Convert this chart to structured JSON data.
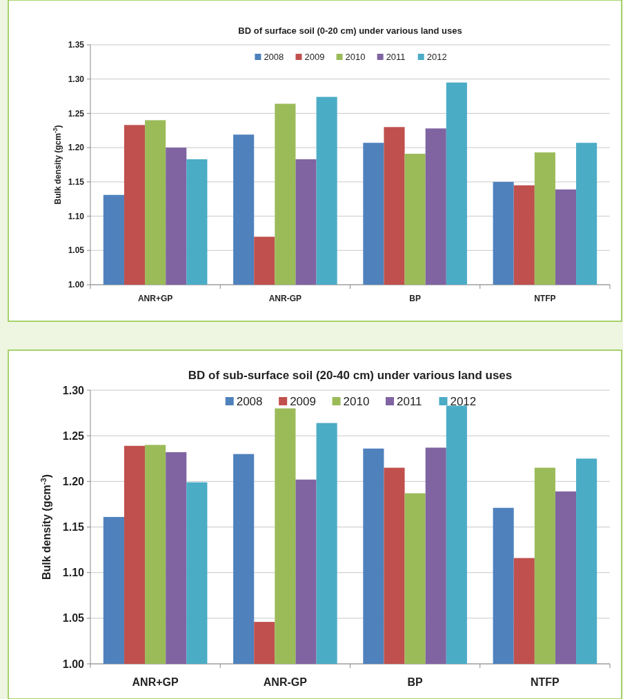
{
  "chart_data": [
    {
      "type": "bar",
      "title": "BD of surface soil (0-20 cm) under various land uses",
      "ylabel": "Bulk density (gcm$^{-3}$)",
      "categories": [
        "ANR+GP",
        "ANR-GP",
        "BP",
        "NTFP"
      ],
      "series": [
        {
          "name": "2008",
          "color": "#4f81bd",
          "values": [
            1.131,
            1.219,
            1.207,
            1.15
          ]
        },
        {
          "name": "2009",
          "color": "#c0504d",
          "values": [
            1.233,
            1.07,
            1.23,
            1.145
          ]
        },
        {
          "name": "2010",
          "color": "#9bbb59",
          "values": [
            1.24,
            1.264,
            1.191,
            1.193
          ]
        },
        {
          "name": "2011",
          "color": "#8064a2",
          "values": [
            1.2,
            1.183,
            1.228,
            1.139
          ]
        },
        {
          "name": "2012",
          "color": "#4bacc6",
          "values": [
            1.183,
            1.274,
            1.295,
            1.207
          ]
        }
      ],
      "ylim": [
        1.0,
        1.35
      ],
      "yticks": [
        {
          "value": 1.0,
          "label": "1.00"
        },
        {
          "value": 1.05,
          "label": "1.05"
        },
        {
          "value": 1.1,
          "label": "1.10"
        },
        {
          "value": 1.15,
          "label": "1.15"
        },
        {
          "value": 1.2,
          "label": "1.20"
        },
        {
          "value": 1.25,
          "label": "1.25"
        },
        {
          "value": 1.3,
          "label": "1.30"
        },
        {
          "value": 1.35,
          "label": "1.35"
        }
      ],
      "grid": "y",
      "legend": "top"
    },
    {
      "type": "bar",
      "title": "BD of sub-surface soil (20-40 cm) under various land uses",
      "ylabel": "Bulk density (gcm$^{-3}$)",
      "categories": [
        "ANR+GP",
        "ANR-GP",
        "BP",
        "NTFP"
      ],
      "series": [
        {
          "name": "2008",
          "color": "#4f81bd",
          "values": [
            1.161,
            1.23,
            1.236,
            1.171
          ]
        },
        {
          "name": "2009",
          "color": "#c0504d",
          "values": [
            1.239,
            1.046,
            1.215,
            1.116
          ]
        },
        {
          "name": "2010",
          "color": "#9bbb59",
          "values": [
            1.24,
            1.28,
            1.187,
            1.215
          ]
        },
        {
          "name": "2011",
          "color": "#8064a2",
          "values": [
            1.232,
            1.202,
            1.237,
            1.189
          ]
        },
        {
          "name": "2012",
          "color": "#4bacc6",
          "values": [
            1.199,
            1.264,
            1.283,
            1.225
          ]
        }
      ],
      "ylim": [
        1.0,
        1.3
      ],
      "yticks": [
        {
          "value": 1.0,
          "label": "1.00"
        },
        {
          "value": 1.05,
          "label": "1.05"
        },
        {
          "value": 1.1,
          "label": "1.10"
        },
        {
          "value": 1.15,
          "label": "1.15"
        },
        {
          "value": 1.2,
          "label": "1.20"
        },
        {
          "value": 1.25,
          "label": "1.25"
        },
        {
          "value": 1.3,
          "label": "1.30"
        }
      ],
      "grid": "y",
      "legend": "top"
    }
  ]
}
